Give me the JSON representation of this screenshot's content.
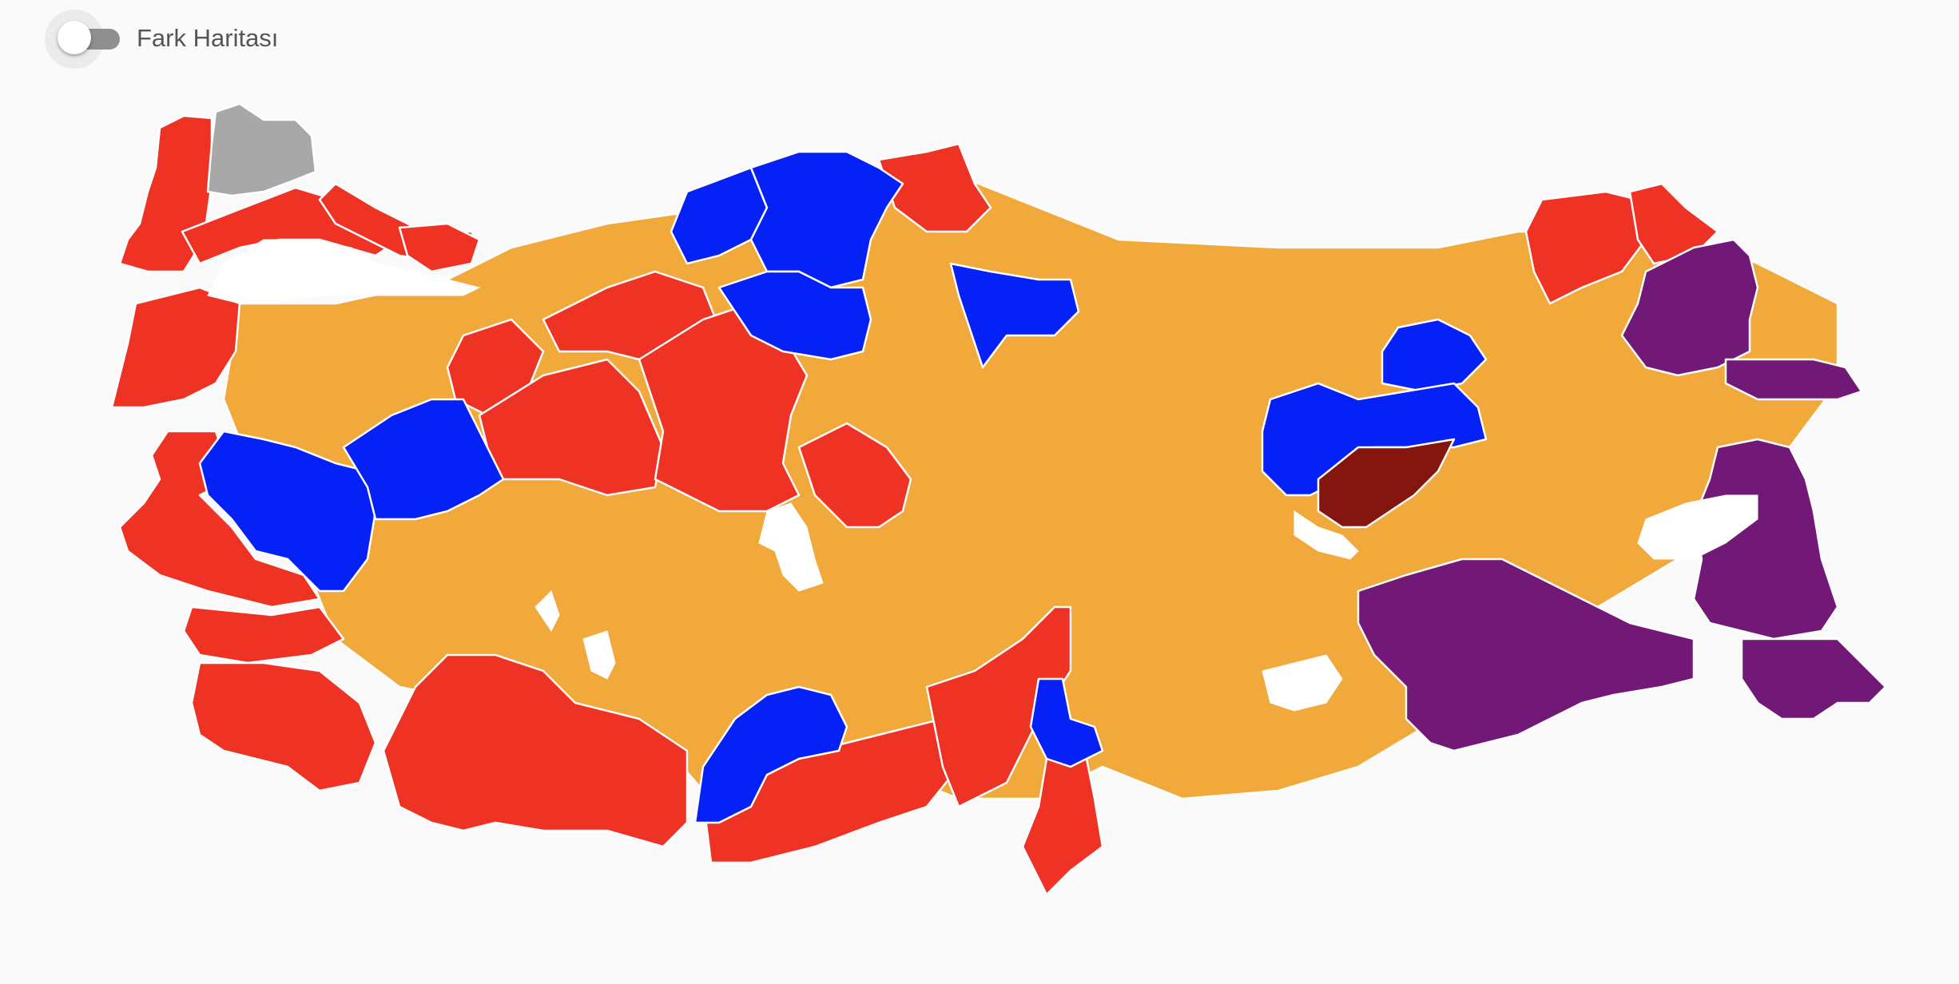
{
  "header": {
    "toggle_label": "Fark Haritası",
    "toggle_state": "off"
  },
  "legend_colors": {
    "red": "#ee3224",
    "orange": "#f2a93b",
    "blue": "#0521f5",
    "purple": "#721977",
    "darkred": "#85160f",
    "gray": "#a8a8a8"
  },
  "map": {
    "provinces": [
      {
        "id": "edirne",
        "color": "red"
      },
      {
        "id": "kirklareli",
        "color": "gray"
      },
      {
        "id": "tekirdag",
        "color": "red"
      },
      {
        "id": "istanbul",
        "color": "red"
      },
      {
        "id": "canakkale",
        "color": "red"
      },
      {
        "id": "izmir",
        "color": "red"
      },
      {
        "id": "aydin",
        "color": "red"
      },
      {
        "id": "mugla",
        "color": "red"
      },
      {
        "id": "antalya",
        "color": "red"
      },
      {
        "id": "mersin",
        "color": "red"
      },
      {
        "id": "adana",
        "color": "red"
      },
      {
        "id": "hatay",
        "color": "red"
      },
      {
        "id": "eskisehir",
        "color": "red"
      },
      {
        "id": "ankara",
        "color": "red"
      },
      {
        "id": "kirsehir",
        "color": "red"
      },
      {
        "id": "bilecik",
        "color": "red"
      },
      {
        "id": "bolu",
        "color": "red"
      },
      {
        "id": "sinop",
        "color": "red"
      },
      {
        "id": "rize",
        "color": "red"
      },
      {
        "id": "artvin",
        "color": "red"
      },
      {
        "id": "kastamonu",
        "color": "blue"
      },
      {
        "id": "bartin",
        "color": "blue"
      },
      {
        "id": "karabuk",
        "color": "blue"
      },
      {
        "id": "cankiri",
        "color": "blue"
      },
      {
        "id": "amasya",
        "color": "blue"
      },
      {
        "id": "manisa",
        "color": "blue"
      },
      {
        "id": "kutahya",
        "color": "blue"
      },
      {
        "id": "karaman",
        "color": "blue"
      },
      {
        "id": "osmaniye",
        "color": "blue"
      },
      {
        "id": "erzincan",
        "color": "blue"
      },
      {
        "id": "bayburt",
        "color": "blue"
      },
      {
        "id": "tunceli",
        "color": "darkred"
      },
      {
        "id": "ardahan_kars",
        "color": "purple"
      },
      {
        "id": "igdir",
        "color": "purple"
      },
      {
        "id": "van",
        "color": "purple"
      },
      {
        "id": "hakkari",
        "color": "purple"
      },
      {
        "id": "siirt_batman_mardin",
        "color": "purple"
      },
      {
        "id": "central_anatolia",
        "color": "orange"
      }
    ]
  }
}
